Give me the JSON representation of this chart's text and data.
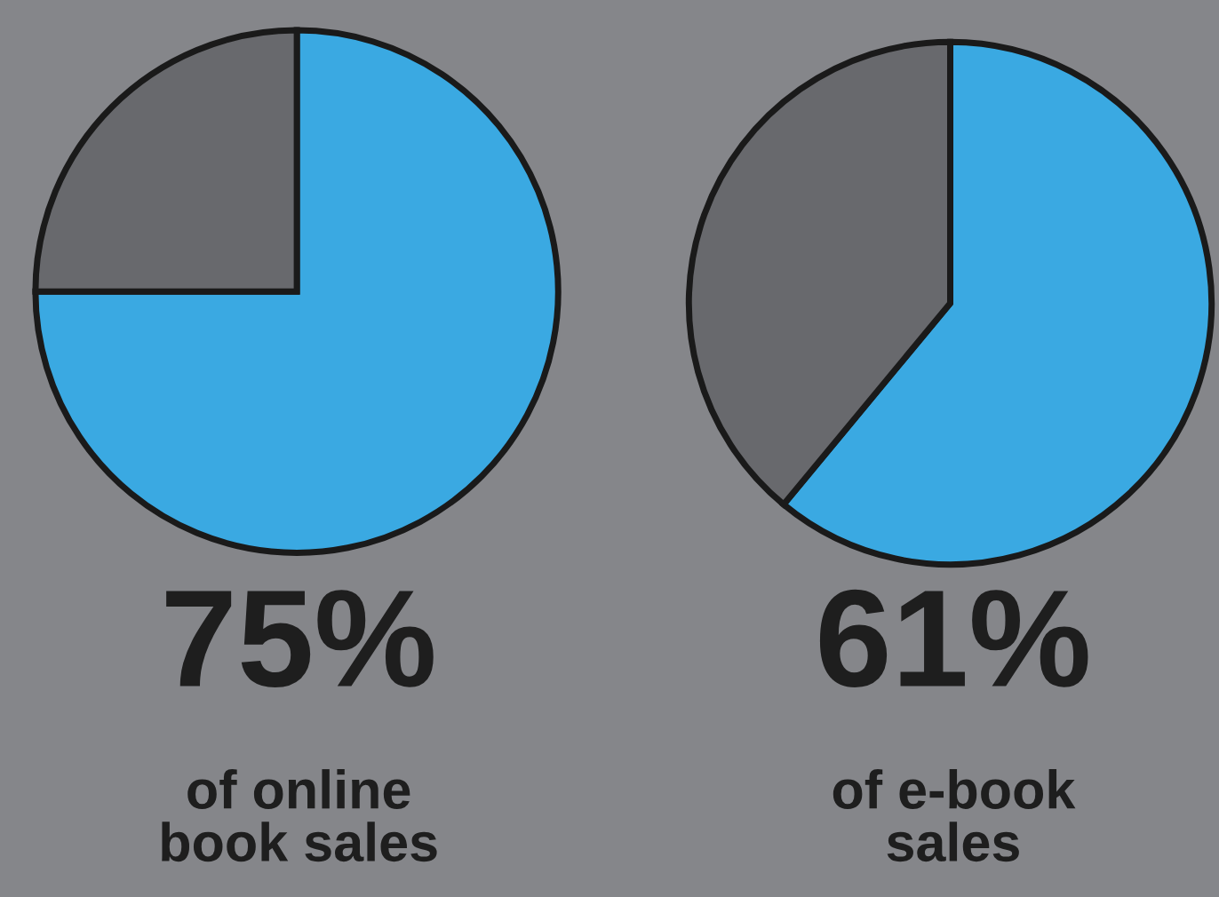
{
  "chart_data": [
    {
      "type": "pie",
      "categories": [
        null,
        null
      ],
      "values": [
        75,
        25
      ],
      "colors": [
        "#3aa9e2",
        "#68696d"
      ],
      "value_labels": [
        "75%",
        null
      ],
      "title": "of online\nbook sales"
    },
    {
      "type": "pie",
      "categories": [
        null,
        null
      ],
      "values": [
        61,
        39
      ],
      "colors": [
        "#3aa9e2",
        "#68696d"
      ],
      "value_labels": [
        "61%",
        null
      ],
      "title": "of e-book\nsales"
    }
  ]
}
